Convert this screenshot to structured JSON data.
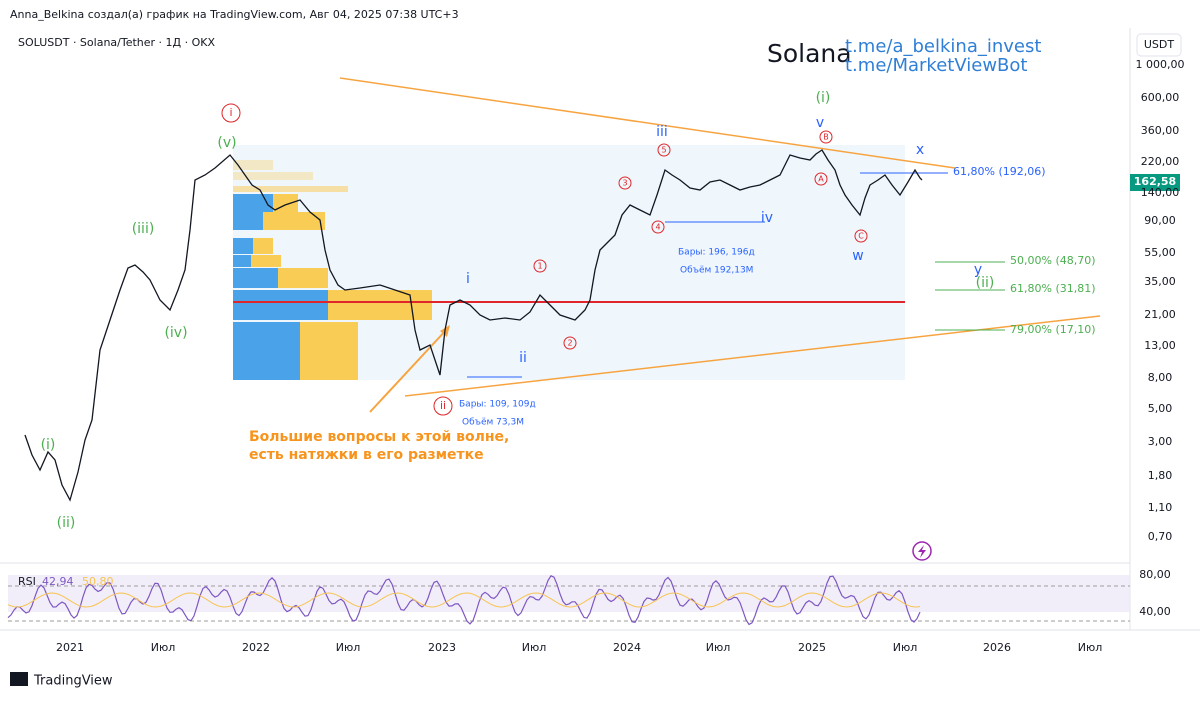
{
  "header": {
    "attribution": "Anna_Belkina создал(а) график на TradingView.com, Авг 04, 2025 07:38 UTC+3",
    "symbol": "SOLUSDT · Solana/Tether · 1Д · OKX",
    "currency": "USDT"
  },
  "overlay": {
    "title": "Solana",
    "links": [
      "t.me/a_belkina_invest",
      "t.me/MarketViewBot"
    ]
  },
  "price_axis": [
    "1 000,00",
    "600,00",
    "360,00",
    "220,00",
    "140,00",
    "90,00",
    "55,00",
    "35,00",
    "21,00",
    "13,00",
    "8,00",
    "5,00",
    "3,00",
    "1,80",
    "1,10",
    "0,70"
  ],
  "last_price": "162,58",
  "rsi": {
    "label": "RSI",
    "value": "42,94",
    "ma": "50,80",
    "axis": [
      "80,00",
      "40,00"
    ]
  },
  "time_axis": [
    "2021",
    "Июл",
    "2022",
    "Июл",
    "2023",
    "Июл",
    "2024",
    "Июл",
    "2025",
    "Июл",
    "2026",
    "Июл"
  ],
  "wave_labels": [
    "(i)",
    "(ii)",
    "(iii)",
    "(iv)",
    "(v)",
    "i",
    "i",
    "ii",
    "ii",
    "1",
    "2",
    "3",
    "4",
    "5",
    "iii",
    "iv",
    "(i)",
    "v",
    "B",
    "A",
    "C",
    "w",
    "x",
    "y",
    "(ii)"
  ],
  "fib_labels": [
    "61,80% (192,06)",
    "50,00% (48,70)",
    "61,80% (31,81)",
    "79,00% (17,10)"
  ],
  "measures": [
    "Бары: 196, 196д",
    "Объём 192,13M",
    "Бары: 109, 109д",
    "Объём 73,3M"
  ],
  "note": [
    "Большие вопросы к этой волне,",
    "есть натяжки в его разметке"
  ],
  "footer": "TradingView"
}
